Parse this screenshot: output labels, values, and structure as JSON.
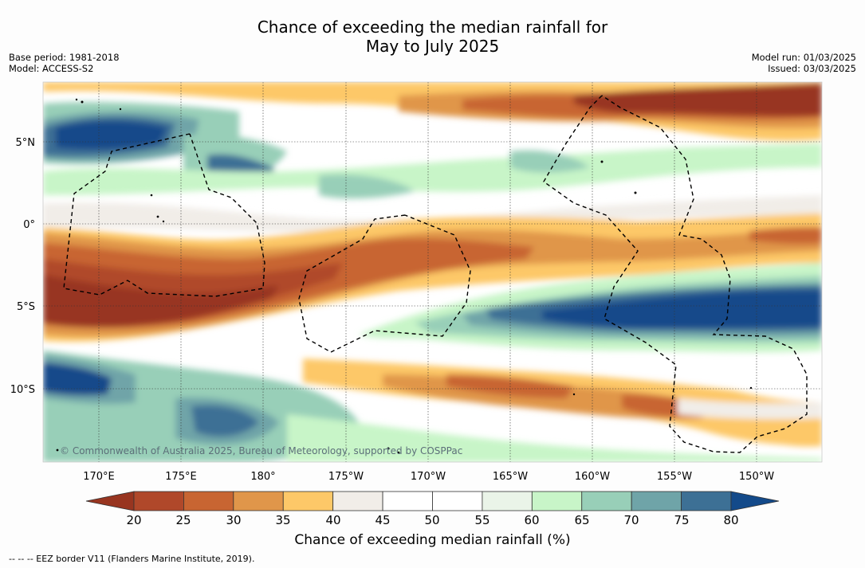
{
  "title": {
    "line1": "Chance of exceeding the median rainfall for",
    "line2": "May to July 2025"
  },
  "meta": {
    "base_period": "Base period: 1981-2018",
    "model": "Model: ACCESS-S2",
    "model_run": "Model run: 01/03/2025",
    "issued": "Issued: 03/03/2025"
  },
  "map": {
    "lat_labels": [
      "5°N",
      "0°",
      "5°S",
      "10°S"
    ],
    "lon_labels": [
      "170°E",
      "175°E",
      "180°",
      "175°W",
      "170°W",
      "165°W",
      "160°W",
      "155°W",
      "150°W"
    ],
    "copyright": "© Commonwealth of Australia 2025, Bureau of Meteorology, supported by COSPPac"
  },
  "colorbar": {
    "ticks": [
      "20",
      "25",
      "30",
      "35",
      "40",
      "45",
      "50",
      "55",
      "60",
      "65",
      "70",
      "75",
      "80"
    ],
    "colors": [
      "#983520",
      "#b0482a",
      "#c86532",
      "#e0964a",
      "#fdc868",
      "#f1ede8",
      "#ffffff",
      "#ffffff",
      "#eaf4e8",
      "#c8f5c8",
      "#98cfb8",
      "#6fa4a8",
      "#3d7095",
      "#134a8a"
    ],
    "title": "Chance of exceeding median rainfall (%)"
  },
  "legend_note": "--  --  -- EEZ border V11 (Flanders Marine Institute, 2019)."
}
